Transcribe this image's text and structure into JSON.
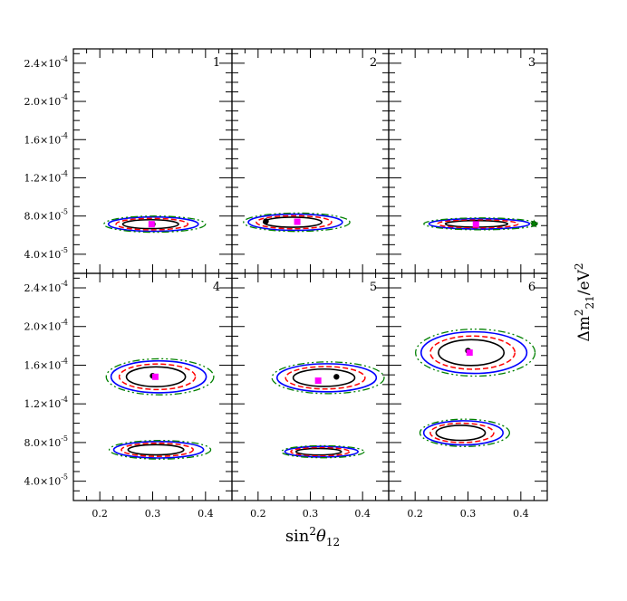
{
  "chart_data": {
    "type": "contour",
    "layout": "2x3 grid of panels",
    "xlabel": "sin",
    "xlabel_sup": "2",
    "xlabel_theta": "θ",
    "xlabel_sub": "12",
    "ylabel": "Δm",
    "ylabel_sup": "2",
    "ylabel_sub": "21",
    "ylabel_unit": "/eV",
    "ylabel_unit_sup": "2",
    "xlim": [
      0.15,
      0.45
    ],
    "ylim": [
      2e-05,
      0.000255
    ],
    "xticks": [
      0.2,
      0.3,
      0.4
    ],
    "xtick_labels": [
      "0.2",
      "0.3",
      "0.4"
    ],
    "yticks": [
      4e-05,
      8e-05,
      0.00012,
      0.00016,
      0.0002,
      0.00024
    ],
    "ytick_labels": [
      {
        "mant": "4.0×10",
        "exp": "-5"
      },
      {
        "mant": "8.0×10",
        "exp": "-5"
      },
      {
        "mant": "1.2×10",
        "exp": "-4"
      },
      {
        "mant": "1.6×10",
        "exp": "-4"
      },
      {
        "mant": "2.0×10",
        "exp": "-4"
      },
      {
        "mant": "2.4×10",
        "exp": "-4"
      }
    ],
    "contour_colors": {
      "black": "#000000",
      "red": "#ff0000",
      "blue": "#0000ff",
      "green": "#008000"
    },
    "marker_colors": {
      "best_fit": "#000000",
      "square": "#ff00ff",
      "star": "#008000"
    },
    "panels": [
      {
        "label": "1",
        "islands": [
          {
            "cx": 0.3,
            "cy": 7.15e-05,
            "rx": 0.085,
            "ry": 7.5e-06
          }
        ],
        "best_fit": [
          0.3,
          7.15e-05
        ],
        "square": [
          0.298,
          7.15e-05
        ]
      },
      {
        "label": "2",
        "islands": [
          {
            "cx": 0.27,
            "cy": 7.35e-05,
            "rx": 0.09,
            "ry": 8.5e-06
          }
        ],
        "best_fit": [
          0.215,
          7.45e-05
        ],
        "square": [
          0.275,
          7.4e-05
        ]
      },
      {
        "label": "3",
        "islands": [
          {
            "cx": 0.32,
            "cy": 7.18e-05,
            "rx": 0.095,
            "ry": 5.5e-06
          }
        ],
        "best_fit": [
          0.425,
          7.18e-05
        ],
        "square": [
          0.315,
          7.13e-05
        ],
        "star": [
          0.425,
          7.18e-05
        ]
      },
      {
        "label": "4",
        "islands": [
          {
            "cx": 0.31,
            "cy": 0.000148,
            "rx": 0.09,
            "ry": 1.65e-05
          },
          {
            "cx": 0.31,
            "cy": 7.25e-05,
            "rx": 0.085,
            "ry": 8.5e-06
          }
        ],
        "best_fit": [
          0.3,
          0.000149
        ],
        "square": [
          0.305,
          0.000148
        ]
      },
      {
        "label": "5",
        "islands": [
          {
            "cx": 0.33,
            "cy": 0.000147,
            "rx": 0.095,
            "ry": 1.45e-05
          },
          {
            "cx": 0.32,
            "cy": 7.05e-05,
            "rx": 0.07,
            "ry": 5.5e-06
          }
        ],
        "best_fit": [
          0.35,
          0.000148
        ],
        "square": [
          0.315,
          0.000144
        ]
      },
      {
        "label": "6",
        "islands": [
          {
            "cx": 0.31,
            "cy": 0.000173,
            "rx": 0.1,
            "ry": 2.15e-05
          },
          {
            "cx": 0.29,
            "cy": 9e-05,
            "rx": 0.075,
            "ry": 1.25e-05
          }
        ],
        "best_fit": [
          0.3,
          0.000175
        ],
        "square": [
          0.303,
          0.000173
        ]
      }
    ],
    "grid": false,
    "legend": "none"
  }
}
